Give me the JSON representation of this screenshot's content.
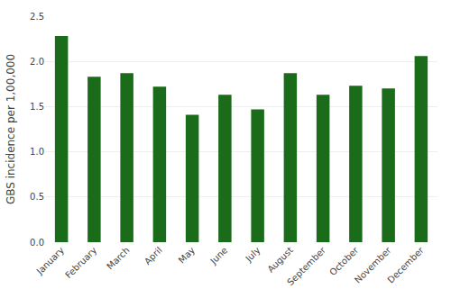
{
  "chart_data": {
    "type": "bar",
    "categories": [
      "January",
      "February",
      "March",
      "April",
      "May",
      "June",
      "July",
      "August",
      "September",
      "October",
      "November",
      "December"
    ],
    "values": [
      2.28,
      1.83,
      1.87,
      1.72,
      1.41,
      1.63,
      1.47,
      1.87,
      1.63,
      1.73,
      1.7,
      2.06
    ],
    "color": "#1a6b1a",
    "ylabel": "GBS incidence per 1,00,000",
    "ylim": [
      0,
      2.5
    ],
    "yticks": [
      {
        "value": 0,
        "label": "0.0"
      },
      0.5,
      {
        "value": 1.0,
        "label": "1.0"
      },
      1.5,
      {
        "value": 2.0,
        "label": "2.0"
      },
      2.5
    ],
    "grid": true
  }
}
